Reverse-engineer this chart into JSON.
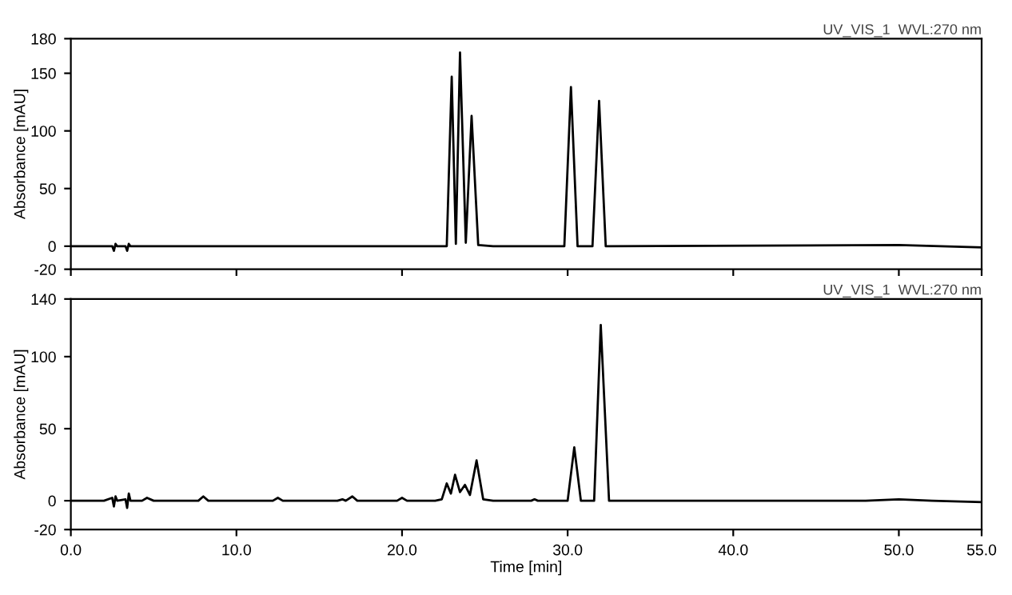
{
  "chart_data": [
    {
      "type": "line",
      "title": "UV_VIS_1  WVL:270 nm",
      "ylabel": "Absorbance [mAU]",
      "xlim": [
        0,
        55
      ],
      "xticks": [
        {
          "value": 0,
          "label": null
        },
        {
          "value": 10,
          "label": null
        },
        {
          "value": 20,
          "label": null
        },
        {
          "value": 30,
          "label": null
        },
        {
          "value": 40,
          "label": null
        },
        {
          "value": 50,
          "label": null
        },
        {
          "value": 55,
          "label": null
        }
      ],
      "ylim": [
        -20,
        180
      ],
      "yticks": [
        -20,
        0,
        50,
        100,
        150,
        180
      ],
      "tick_labels": "y",
      "grid": false,
      "marker": "none",
      "line_style": "solid",
      "series": [
        {
          "color": "#000000",
          "x": [
            0,
            2.5,
            2.6,
            2.7,
            2.8,
            3.3,
            3.4,
            3.5,
            3.6,
            22.0,
            22.7,
            23.0,
            23.25,
            23.5,
            23.85,
            24.2,
            24.6,
            25.5,
            29.8,
            30.2,
            30.6,
            31.5,
            31.9,
            32.3,
            50,
            55
          ],
          "values": [
            0,
            0,
            -4,
            2,
            0,
            0,
            -4,
            2,
            0,
            0,
            0,
            147,
            2,
            168,
            3,
            113,
            1,
            0,
            0,
            138,
            0,
            0,
            126,
            0,
            1,
            -1
          ]
        }
      ]
    },
    {
      "type": "line",
      "title": "UV_VIS_1  WVL:270 nm",
      "xlabel": "Time [min]",
      "ylabel": "Absorbance [mAU]",
      "xlim": [
        0,
        55
      ],
      "xticks": [
        {
          "value": 0,
          "label": "0.0"
        },
        {
          "value": 10,
          "label": "10.0"
        },
        {
          "value": 20,
          "label": "20.0"
        },
        {
          "value": 30,
          "label": "30.0"
        },
        {
          "value": 40,
          "label": "40.0"
        },
        {
          "value": 50,
          "label": "50.0"
        },
        {
          "value": 55,
          "label": "55.0"
        }
      ],
      "ylim": [
        -20,
        140
      ],
      "yticks": [
        -20,
        0,
        50,
        100,
        140
      ],
      "grid": false,
      "marker": "none",
      "line_style": "solid",
      "series": [
        {
          "color": "#000000",
          "x": [
            0,
            2.0,
            2.5,
            2.6,
            2.7,
            2.8,
            3.3,
            3.4,
            3.5,
            3.6,
            4.3,
            4.6,
            5,
            7.7,
            8.0,
            8.3,
            12.2,
            12.5,
            12.8,
            16.1,
            16.4,
            16.6,
            17.0,
            17.3,
            19.7,
            20.0,
            20.3,
            22.0,
            22.4,
            22.7,
            22.95,
            23.2,
            23.5,
            23.8,
            24.1,
            24.5,
            24.9,
            25.5,
            27.8,
            28.0,
            28.2,
            30.0,
            30.4,
            30.8,
            31.6,
            32.0,
            32.5,
            33,
            48,
            50,
            52,
            55
          ],
          "values": [
            0,
            0,
            2,
            -4,
            3,
            0,
            1,
            -5,
            5,
            0,
            0,
            2,
            0,
            0,
            3,
            0,
            0,
            2,
            0,
            0,
            1,
            0,
            3,
            0,
            0,
            2,
            0,
            0,
            1,
            12,
            5,
            18,
            6,
            11,
            4,
            28,
            1,
            0,
            0,
            1,
            0,
            0,
            37,
            0,
            0,
            122,
            0,
            0,
            0,
            1,
            0,
            -1
          ]
        }
      ]
    }
  ]
}
